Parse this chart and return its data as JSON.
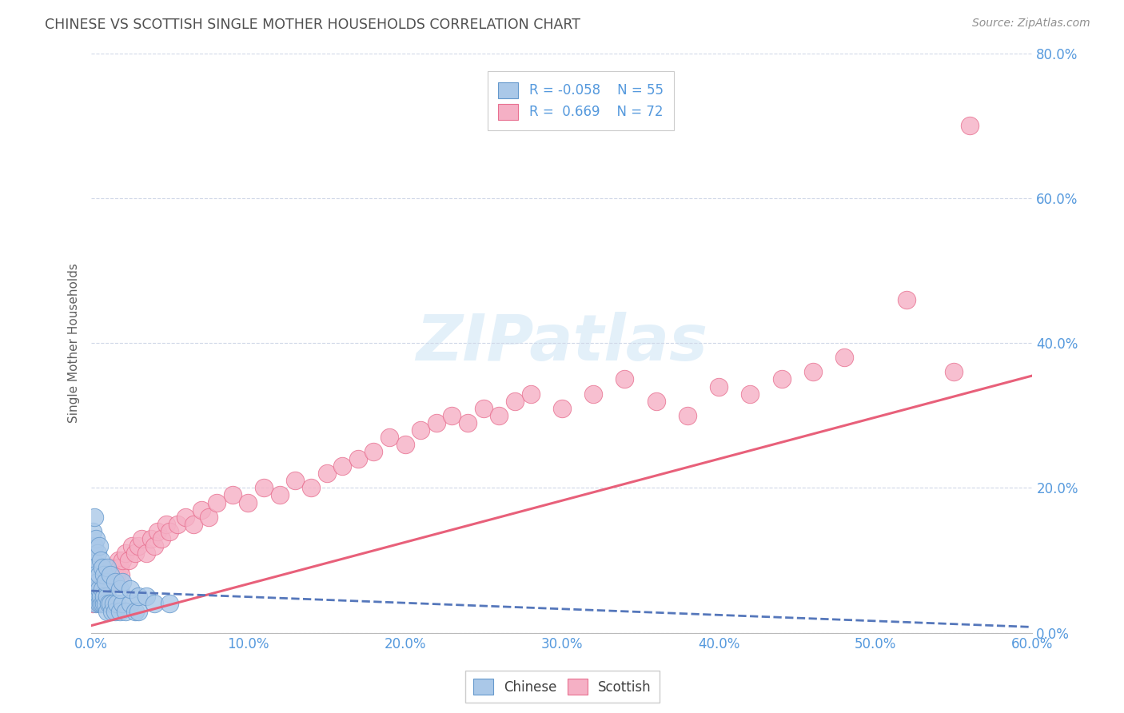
{
  "title": "CHINESE VS SCOTTISH SINGLE MOTHER HOUSEHOLDS CORRELATION CHART",
  "source": "Source: ZipAtlas.com",
  "xlim": [
    0.0,
    0.6
  ],
  "ylim": [
    0.0,
    0.8
  ],
  "chinese_R": -0.058,
  "chinese_N": 55,
  "scottish_R": 0.669,
  "scottish_N": 72,
  "chinese_color": "#aac8e8",
  "scottish_color": "#f5b0c5",
  "chinese_edge_color": "#6699cc",
  "scottish_edge_color": "#e87090",
  "chinese_line_color": "#5577bb",
  "scottish_line_color": "#e8607a",
  "legend_label_chinese": "Chinese",
  "legend_label_scottish": "Scottish",
  "watermark": "ZIPatlas",
  "title_color": "#505050",
  "source_color": "#909090",
  "tick_color": "#5599dd",
  "grid_color": "#d0d8e8",
  "chinese_scatter_x": [
    0.001,
    0.001,
    0.001,
    0.002,
    0.002,
    0.002,
    0.002,
    0.003,
    0.003,
    0.003,
    0.004,
    0.004,
    0.005,
    0.005,
    0.005,
    0.006,
    0.006,
    0.007,
    0.007,
    0.008,
    0.008,
    0.009,
    0.01,
    0.01,
    0.011,
    0.012,
    0.013,
    0.014,
    0.015,
    0.016,
    0.018,
    0.02,
    0.022,
    0.025,
    0.028,
    0.03,
    0.001,
    0.002,
    0.003,
    0.004,
    0.005,
    0.006,
    0.007,
    0.008,
    0.009,
    0.01,
    0.012,
    0.015,
    0.018,
    0.02,
    0.025,
    0.03,
    0.035,
    0.04,
    0.05
  ],
  "chinese_scatter_y": [
    0.06,
    0.08,
    0.1,
    0.05,
    0.07,
    0.09,
    0.12,
    0.04,
    0.06,
    0.08,
    0.05,
    0.07,
    0.04,
    0.06,
    0.08,
    0.04,
    0.05,
    0.04,
    0.06,
    0.04,
    0.05,
    0.04,
    0.03,
    0.05,
    0.04,
    0.04,
    0.03,
    0.04,
    0.03,
    0.04,
    0.03,
    0.04,
    0.03,
    0.04,
    0.03,
    0.03,
    0.14,
    0.16,
    0.13,
    0.11,
    0.12,
    0.1,
    0.09,
    0.08,
    0.07,
    0.09,
    0.08,
    0.07,
    0.06,
    0.07,
    0.06,
    0.05,
    0.05,
    0.04,
    0.04
  ],
  "scottish_scatter_x": [
    0.001,
    0.002,
    0.003,
    0.004,
    0.005,
    0.006,
    0.007,
    0.008,
    0.009,
    0.01,
    0.011,
    0.012,
    0.013,
    0.014,
    0.015,
    0.016,
    0.017,
    0.018,
    0.019,
    0.02,
    0.022,
    0.024,
    0.026,
    0.028,
    0.03,
    0.032,
    0.035,
    0.038,
    0.04,
    0.042,
    0.045,
    0.048,
    0.05,
    0.055,
    0.06,
    0.065,
    0.07,
    0.075,
    0.08,
    0.09,
    0.1,
    0.11,
    0.12,
    0.13,
    0.14,
    0.15,
    0.16,
    0.17,
    0.18,
    0.19,
    0.2,
    0.21,
    0.22,
    0.23,
    0.24,
    0.25,
    0.26,
    0.27,
    0.28,
    0.3,
    0.32,
    0.34,
    0.36,
    0.38,
    0.4,
    0.42,
    0.44,
    0.46,
    0.48,
    0.52,
    0.55,
    0.56
  ],
  "scottish_scatter_y": [
    0.04,
    0.05,
    0.06,
    0.05,
    0.07,
    0.06,
    0.05,
    0.07,
    0.06,
    0.08,
    0.07,
    0.09,
    0.08,
    0.07,
    0.09,
    0.08,
    0.1,
    0.09,
    0.08,
    0.1,
    0.11,
    0.1,
    0.12,
    0.11,
    0.12,
    0.13,
    0.11,
    0.13,
    0.12,
    0.14,
    0.13,
    0.15,
    0.14,
    0.15,
    0.16,
    0.15,
    0.17,
    0.16,
    0.18,
    0.19,
    0.18,
    0.2,
    0.19,
    0.21,
    0.2,
    0.22,
    0.23,
    0.24,
    0.25,
    0.27,
    0.26,
    0.28,
    0.29,
    0.3,
    0.29,
    0.31,
    0.3,
    0.32,
    0.33,
    0.31,
    0.33,
    0.35,
    0.32,
    0.3,
    0.34,
    0.33,
    0.35,
    0.36,
    0.38,
    0.46,
    0.36,
    0.7
  ],
  "scottish_tline_x0": 0.0,
  "scottish_tline_y0": 0.01,
  "scottish_tline_x1": 0.6,
  "scottish_tline_y1": 0.355,
  "chinese_tline_x0": 0.0,
  "chinese_tline_y0": 0.058,
  "chinese_tline_x1": 0.6,
  "chinese_tline_y1": 0.008
}
